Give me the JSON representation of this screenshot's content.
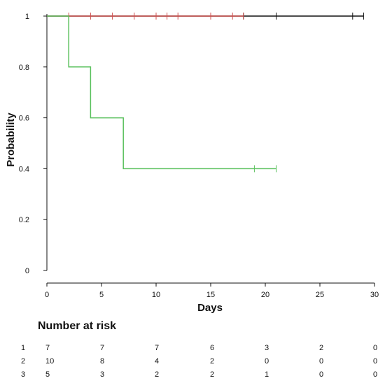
{
  "chart_data": {
    "type": "line",
    "subtype": "kaplan-meier survival curve (step)",
    "xlabel": "Days",
    "ylabel": "Probability",
    "xlim": [
      0,
      30
    ],
    "ylim": [
      0,
      1
    ],
    "x_ticks": [
      0,
      5,
      10,
      15,
      20,
      25,
      30
    ],
    "y_ticks": [
      0,
      0.2,
      0.4,
      0.6,
      0.8,
      1
    ],
    "y_tick_labels": [
      "0",
      "0.2",
      "0.4",
      "0.6",
      "0.8",
      "1"
    ],
    "grid": false,
    "legend": "none",
    "series": [
      {
        "color": "#111111",
        "steps": [
          [
            0,
            1
          ],
          [
            29,
            1
          ]
        ],
        "censor_marks": [
          [
            28,
            1
          ],
          [
            29,
            1
          ],
          [
            21,
            1
          ],
          [
            18,
            1
          ]
        ]
      },
      {
        "color": "#d0504f",
        "steps": [
          [
            0,
            1
          ],
          [
            18,
            1
          ]
        ],
        "censor_marks": [
          [
            2,
            1
          ],
          [
            4,
            1
          ],
          [
            6,
            1
          ],
          [
            8,
            1
          ],
          [
            10,
            1
          ],
          [
            11,
            1
          ],
          [
            12,
            1
          ],
          [
            15,
            1
          ],
          [
            17,
            1
          ],
          [
            18,
            1
          ]
        ]
      },
      {
        "color": "#59c05c",
        "steps": [
          [
            0,
            1
          ],
          [
            2,
            0.8
          ],
          [
            4,
            0.6
          ],
          [
            7,
            0.4
          ],
          [
            21,
            0.4
          ]
        ],
        "censor_marks": [
          [
            19,
            0.4
          ],
          [
            21,
            0.4
          ]
        ]
      }
    ]
  },
  "risk_table": {
    "title": "Number at risk",
    "rows": [
      {
        "label": "1",
        "values": [
          "7",
          "7",
          "7",
          "6",
          "3",
          "2",
          "0"
        ]
      },
      {
        "label": "2",
        "values": [
          "10",
          "8",
          "4",
          "2",
          "0",
          "0",
          "0"
        ]
      },
      {
        "label": "3",
        "values": [
          "5",
          "3",
          "2",
          "2",
          "1",
          "0",
          "0"
        ]
      }
    ]
  }
}
